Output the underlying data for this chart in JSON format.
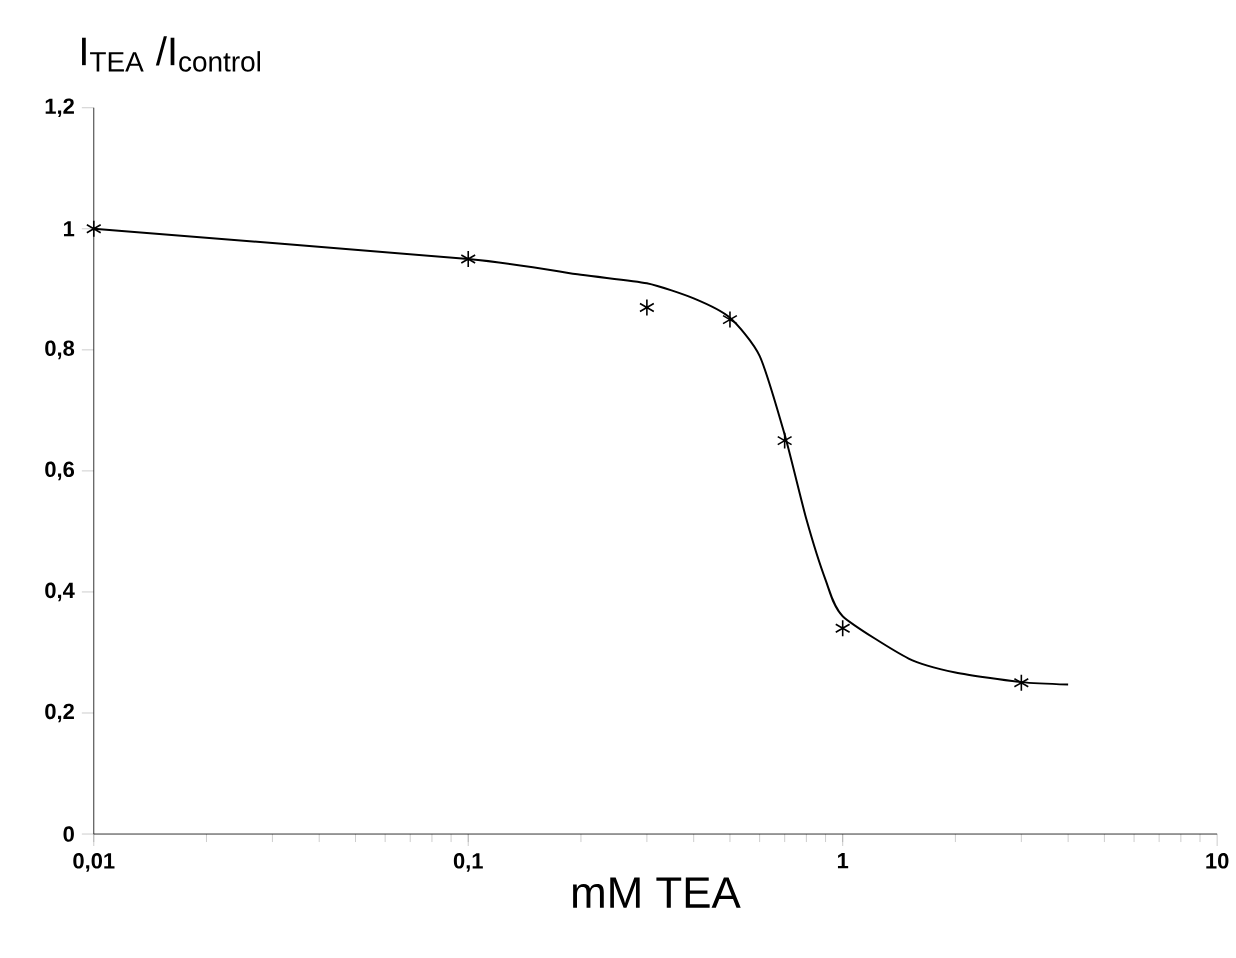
{
  "chart_data": {
    "type": "scatter",
    "xlabel": "mM TEA",
    "ylabel": "I$_{TEA}$ /I$_{control}$",
    "log": "x",
    "xlim": [
      0.01,
      10
    ],
    "ylim": [
      0,
      1.2
    ],
    "xticks": [
      {
        "value": 0.01,
        "label": "0,01"
      },
      {
        "value": 0.1,
        "label": "0,1"
      },
      1,
      10
    ],
    "yticks": [
      0,
      {
        "value": 0.2,
        "label": "0,2"
      },
      {
        "value": 0.4,
        "label": "0,4"
      },
      {
        "value": 0.6,
        "label": "0,6"
      },
      {
        "value": 0.8,
        "label": "0,8"
      },
      1,
      {
        "value": 1.2,
        "label": "1,2"
      }
    ],
    "grid": false,
    "marker": "cross",
    "series": [
      {
        "type": "line",
        "color": "#000000",
        "marker": "none",
        "x": [
          0.01,
          0.1,
          0.2,
          0.3,
          0.4,
          0.5,
          0.6,
          0.7,
          0.8,
          0.9,
          1,
          1.5,
          2,
          3,
          4
        ],
        "values": [
          1.0,
          0.95,
          0.924,
          0.91,
          0.885,
          0.853,
          0.79,
          0.66,
          0.52,
          0.42,
          0.36,
          0.29,
          0.267,
          0.251,
          0.247
        ]
      },
      {
        "color": "#000000",
        "x": [
          0.01,
          0.1,
          0.3,
          0.5,
          0.7,
          1,
          3
        ],
        "values": [
          1.0,
          0.95,
          0.87,
          0.85,
          0.65,
          0.34,
          0.25
        ]
      }
    ]
  }
}
